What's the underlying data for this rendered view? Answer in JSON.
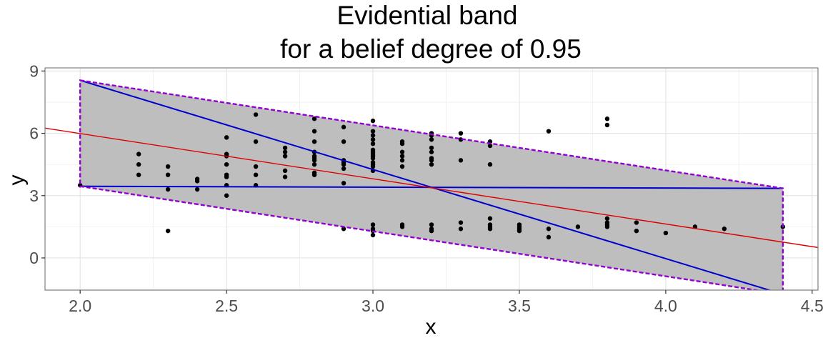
{
  "chart_data": {
    "type": "scatter",
    "title": "Evidential band",
    "subtitle": "for a belief degree of 0.95",
    "xlabel": "x",
    "ylabel": "y",
    "xlim": [
      1.88,
      4.52
    ],
    "ylim": [
      -1.55,
      9.15
    ],
    "x_ticks": [
      2.0,
      2.5,
      3.0,
      3.5,
      4.0,
      4.5
    ],
    "x_tick_labels": [
      "2.0",
      "2.5",
      "3.0",
      "3.5",
      "4.0",
      "4.5"
    ],
    "y_ticks": [
      0,
      3,
      6,
      9
    ],
    "y_tick_labels": [
      "0",
      "3",
      "6",
      "9"
    ],
    "grid": true,
    "legend": "none",
    "colors": {
      "band_fill": "#bebebe",
      "band_border": "#9400d3",
      "boundary_lines": "#0000cd",
      "regression_line": "#dd0000",
      "points": "#000000",
      "grid_major": "#e5e5e5",
      "grid_minor": "#f2f2f2",
      "panel_border": "#7f7f7f"
    },
    "band_polygon": [
      {
        "x": 2.0,
        "y": 8.55
      },
      {
        "x": 4.4,
        "y": 3.35
      },
      {
        "x": 4.4,
        "y": -1.75
      },
      {
        "x": 2.0,
        "y": 3.45
      }
    ],
    "boundary_lines": [
      {
        "x": [
          2.0,
          4.4
        ],
        "y": [
          8.55,
          -1.75
        ]
      },
      {
        "x": [
          2.0,
          4.4
        ],
        "y": [
          3.45,
          3.35
        ]
      }
    ],
    "regression_line": {
      "x": [
        1.88,
        4.52
      ],
      "y": [
        6.25,
        0.5
      ]
    },
    "points": [
      [
        2.0,
        3.5
      ],
      [
        2.2,
        5.0
      ],
      [
        2.2,
        4.5
      ],
      [
        2.2,
        4.0
      ],
      [
        2.3,
        4.4
      ],
      [
        2.3,
        4.0
      ],
      [
        2.3,
        3.3
      ],
      [
        2.3,
        1.3
      ],
      [
        2.4,
        3.8
      ],
      [
        2.4,
        3.7
      ],
      [
        2.4,
        3.3
      ],
      [
        2.5,
        5.8
      ],
      [
        2.5,
        5.0
      ],
      [
        2.5,
        4.9
      ],
      [
        2.5,
        4.5
      ],
      [
        2.5,
        4.0
      ],
      [
        2.5,
        3.9
      ],
      [
        2.5,
        3.5
      ],
      [
        2.5,
        3.0
      ],
      [
        2.6,
        6.9
      ],
      [
        2.6,
        5.6
      ],
      [
        2.6,
        4.4
      ],
      [
        2.6,
        4.0
      ],
      [
        2.6,
        3.5
      ],
      [
        2.7,
        5.3
      ],
      [
        2.7,
        5.1
      ],
      [
        2.7,
        4.9
      ],
      [
        2.7,
        4.2
      ],
      [
        2.7,
        3.9
      ],
      [
        2.8,
        6.7
      ],
      [
        2.8,
        6.1
      ],
      [
        2.8,
        5.6
      ],
      [
        2.8,
        5.1
      ],
      [
        2.8,
        4.9
      ],
      [
        2.8,
        4.8
      ],
      [
        2.8,
        4.7
      ],
      [
        2.8,
        4.5
      ],
      [
        2.8,
        4.1
      ],
      [
        2.8,
        4.0
      ],
      [
        2.9,
        6.3
      ],
      [
        2.9,
        5.6
      ],
      [
        2.9,
        4.7
      ],
      [
        2.9,
        4.6
      ],
      [
        2.9,
        4.5
      ],
      [
        2.9,
        4.3
      ],
      [
        2.9,
        3.6
      ],
      [
        2.9,
        1.4
      ],
      [
        3.0,
        6.6
      ],
      [
        3.0,
        6.1
      ],
      [
        3.0,
        5.9
      ],
      [
        3.0,
        5.7
      ],
      [
        3.0,
        5.5
      ],
      [
        3.0,
        5.2
      ],
      [
        3.0,
        5.1
      ],
      [
        3.0,
        5.0
      ],
      [
        3.0,
        4.9
      ],
      [
        3.0,
        4.8
      ],
      [
        3.0,
        4.6
      ],
      [
        3.0,
        4.5
      ],
      [
        3.0,
        4.4
      ],
      [
        3.0,
        4.2
      ],
      [
        3.0,
        1.6
      ],
      [
        3.0,
        1.4
      ],
      [
        3.0,
        1.3
      ],
      [
        3.0,
        1.1
      ],
      [
        3.1,
        5.6
      ],
      [
        3.1,
        5.5
      ],
      [
        3.1,
        5.1
      ],
      [
        3.1,
        4.9
      ],
      [
        3.1,
        4.7
      ],
      [
        3.1,
        4.4
      ],
      [
        3.1,
        1.6
      ],
      [
        3.1,
        1.5
      ],
      [
        3.2,
        6.0
      ],
      [
        3.2,
        5.9
      ],
      [
        3.2,
        5.7
      ],
      [
        3.2,
        5.3
      ],
      [
        3.2,
        5.1
      ],
      [
        3.2,
        4.8
      ],
      [
        3.2,
        4.7
      ],
      [
        3.2,
        4.5
      ],
      [
        3.2,
        1.6
      ],
      [
        3.2,
        1.4
      ],
      [
        3.2,
        1.3
      ],
      [
        3.3,
        6.0
      ],
      [
        3.3,
        5.7
      ],
      [
        3.3,
        4.7
      ],
      [
        3.3,
        1.7
      ],
      [
        3.3,
        1.4
      ],
      [
        3.4,
        5.6
      ],
      [
        3.4,
        5.4
      ],
      [
        3.4,
        4.5
      ],
      [
        3.4,
        1.9
      ],
      [
        3.4,
        1.6
      ],
      [
        3.4,
        1.5
      ],
      [
        3.4,
        1.4
      ],
      [
        3.5,
        1.6
      ],
      [
        3.5,
        1.5
      ],
      [
        3.5,
        1.4
      ],
      [
        3.5,
        1.3
      ],
      [
        3.6,
        6.1
      ],
      [
        3.6,
        1.4
      ],
      [
        3.6,
        1.0
      ],
      [
        3.7,
        1.5
      ],
      [
        3.8,
        6.7
      ],
      [
        3.8,
        6.4
      ],
      [
        3.8,
        1.9
      ],
      [
        3.8,
        1.7
      ],
      [
        3.8,
        1.6
      ],
      [
        3.8,
        1.5
      ],
      [
        3.9,
        1.7
      ],
      [
        3.9,
        1.3
      ],
      [
        4.0,
        1.2
      ],
      [
        4.1,
        1.5
      ],
      [
        4.2,
        1.4
      ],
      [
        4.4,
        1.5
      ]
    ]
  }
}
